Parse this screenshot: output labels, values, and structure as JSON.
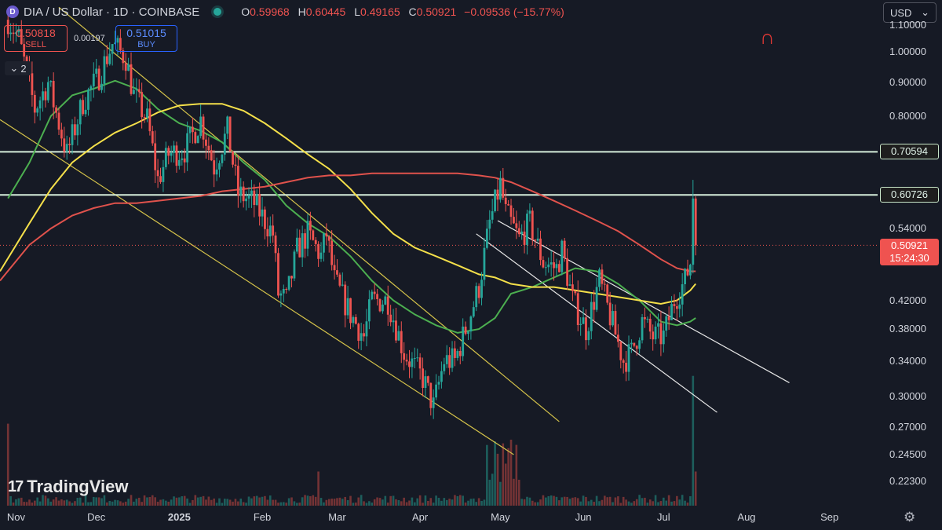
{
  "header": {
    "icon_letter": "D",
    "symbol": "DIA / US Dollar · 1D · COINBASE",
    "open_label": "O",
    "open": "0.59968",
    "high_label": "H",
    "high": "0.60445",
    "low_label": "L",
    "low": "0.49165",
    "close_label": "C",
    "close": "0.50921",
    "change": "−0.09536 (−15.77%)"
  },
  "trade": {
    "sell_price": "0.50818",
    "sell_label": "SELL",
    "spread": "0.00197",
    "buy_price": "0.51015",
    "buy_label": "BUY"
  },
  "indicator_toggle": {
    "count": "2"
  },
  "currency_select": {
    "value": "USD"
  },
  "branding": {
    "logo_text": "TradingView"
  },
  "colors": {
    "background": "#161a25",
    "up": "#26a69a",
    "down": "#ef5350",
    "ma_short": "#4caf50",
    "ma_mid": "#f5e04a",
    "ma_long": "#e0524c",
    "channel_yellow": "#d4c24a",
    "channel_white": "#e6e6e6",
    "level": "#d6eedb"
  },
  "chart_data": {
    "type": "candlestick",
    "title": "DIA / US Dollar · 1D · COINBASE",
    "y_scale": "log",
    "ylim": [
      0.205,
      1.2
    ],
    "xlim_day_index": [
      -3,
      325
    ],
    "x_start_date": "2024-10-29",
    "y_ticks": [
      "1.10000",
      "1.00000",
      "0.90000",
      "0.80000",
      "0.54000",
      "0.42000",
      "0.38000",
      "0.34000",
      "0.30000",
      "0.27000",
      "0.24500",
      "0.22300"
    ],
    "y_tick_values": [
      1.1,
      1.0,
      0.9,
      0.8,
      0.54,
      0.42,
      0.38,
      0.34,
      0.3,
      0.27,
      0.245,
      0.223
    ],
    "x_ticks": [
      {
        "label": "Nov",
        "day": 3
      },
      {
        "label": "Dec",
        "day": 33
      },
      {
        "label": "2025",
        "day": 64,
        "bold": true
      },
      {
        "label": "Feb",
        "day": 95
      },
      {
        "label": "Mar",
        "day": 123
      },
      {
        "label": "Apr",
        "day": 154
      },
      {
        "label": "May",
        "day": 184
      },
      {
        "label": "Jun",
        "day": 215
      },
      {
        "label": "Jul",
        "day": 245
      },
      {
        "label": "Aug",
        "day": 276
      },
      {
        "label": "Sep",
        "day": 307
      }
    ],
    "horizontal_levels": [
      {
        "value": 0.70594,
        "label": "0.70594"
      },
      {
        "value": 0.60726,
        "label": "0.60726"
      }
    ],
    "last_price": {
      "value": 0.50921,
      "label": "0.50921",
      "countdown": "15:24:30"
    },
    "price_path_anchors": [
      [
        0,
        1.12
      ],
      [
        4,
        1.05
      ],
      [
        10,
        0.82
      ],
      [
        15,
        0.9
      ],
      [
        22,
        0.7
      ],
      [
        28,
        0.84
      ],
      [
        34,
        0.92
      ],
      [
        39,
        1.03
      ],
      [
        44,
        0.98
      ],
      [
        47,
        0.86
      ],
      [
        52,
        0.79
      ],
      [
        56,
        0.64
      ],
      [
        60,
        0.7
      ],
      [
        66,
        0.71
      ],
      [
        72,
        0.79
      ],
      [
        77,
        0.67
      ],
      [
        82,
        0.76
      ],
      [
        86,
        0.61
      ],
      [
        92,
        0.59
      ],
      [
        99,
        0.53
      ],
      [
        101,
        0.43
      ],
      [
        104,
        0.42
      ],
      [
        108,
        0.5
      ],
      [
        112,
        0.53
      ],
      [
        117,
        0.49
      ],
      [
        119,
        0.53
      ],
      [
        122,
        0.45
      ],
      [
        128,
        0.4
      ],
      [
        133,
        0.37
      ],
      [
        136,
        0.42
      ],
      [
        142,
        0.42
      ],
      [
        148,
        0.35
      ],
      [
        155,
        0.32
      ],
      [
        159,
        0.29
      ],
      [
        163,
        0.34
      ],
      [
        167,
        0.34
      ],
      [
        172,
        0.39
      ],
      [
        176,
        0.44
      ],
      [
        180,
        0.55
      ],
      [
        184,
        0.63
      ],
      [
        186,
        0.57
      ],
      [
        191,
        0.52
      ],
      [
        195,
        0.55
      ],
      [
        200,
        0.48
      ],
      [
        205,
        0.47
      ],
      [
        207,
        0.5
      ],
      [
        211,
        0.42
      ],
      [
        216,
        0.38
      ],
      [
        221,
        0.45
      ],
      [
        224,
        0.41
      ],
      [
        230,
        0.34
      ],
      [
        233,
        0.35
      ],
      [
        237,
        0.39
      ],
      [
        241,
        0.37
      ],
      [
        245,
        0.37
      ],
      [
        249,
        0.42
      ],
      [
        253,
        0.45
      ],
      [
        255,
        0.48
      ],
      [
        256,
        0.6
      ],
      [
        257,
        0.51
      ]
    ],
    "moving_averages": [
      {
        "name": "MA short",
        "color": "#4caf50",
        "points": [
          [
            0,
            0.6
          ],
          [
            8,
            0.68
          ],
          [
            16,
            0.8
          ],
          [
            24,
            0.86
          ],
          [
            32,
            0.88
          ],
          [
            40,
            0.905
          ],
          [
            48,
            0.88
          ],
          [
            56,
            0.82
          ],
          [
            64,
            0.78
          ],
          [
            72,
            0.76
          ],
          [
            80,
            0.73
          ],
          [
            88,
            0.68
          ],
          [
            96,
            0.64
          ],
          [
            104,
            0.585
          ],
          [
            112,
            0.55
          ],
          [
            120,
            0.525
          ],
          [
            128,
            0.49
          ],
          [
            136,
            0.45
          ],
          [
            144,
            0.42
          ],
          [
            152,
            0.4
          ],
          [
            160,
            0.385
          ],
          [
            168,
            0.375
          ],
          [
            176,
            0.38
          ],
          [
            182,
            0.395
          ],
          [
            188,
            0.43
          ],
          [
            196,
            0.44
          ],
          [
            204,
            0.455
          ],
          [
            212,
            0.47
          ],
          [
            220,
            0.465
          ],
          [
            228,
            0.445
          ],
          [
            236,
            0.42
          ],
          [
            244,
            0.39
          ],
          [
            250,
            0.385
          ],
          [
            255,
            0.39
          ],
          [
            257,
            0.395
          ]
        ]
      },
      {
        "name": "MA mid",
        "color": "#f5e04a",
        "points": [
          [
            -3,
            0.465
          ],
          [
            8,
            0.55
          ],
          [
            16,
            0.62
          ],
          [
            24,
            0.68
          ],
          [
            32,
            0.72
          ],
          [
            40,
            0.755
          ],
          [
            48,
            0.78
          ],
          [
            56,
            0.81
          ],
          [
            64,
            0.83
          ],
          [
            72,
            0.835
          ],
          [
            80,
            0.835
          ],
          [
            88,
            0.815
          ],
          [
            96,
            0.78
          ],
          [
            104,
            0.74
          ],
          [
            112,
            0.7
          ],
          [
            120,
            0.665
          ],
          [
            128,
            0.62
          ],
          [
            136,
            0.57
          ],
          [
            144,
            0.53
          ],
          [
            152,
            0.505
          ],
          [
            160,
            0.49
          ],
          [
            168,
            0.475
          ],
          [
            176,
            0.46
          ],
          [
            182,
            0.455
          ],
          [
            188,
            0.445
          ],
          [
            196,
            0.44
          ],
          [
            204,
            0.44
          ],
          [
            212,
            0.435
          ],
          [
            220,
            0.43
          ],
          [
            228,
            0.425
          ],
          [
            236,
            0.42
          ],
          [
            244,
            0.415
          ],
          [
            250,
            0.42
          ],
          [
            255,
            0.435
          ],
          [
            257,
            0.445
          ]
        ]
      },
      {
        "name": "MA long",
        "color": "#e0524c",
        "points": [
          [
            -3,
            0.45
          ],
          [
            8,
            0.51
          ],
          [
            16,
            0.54
          ],
          [
            24,
            0.565
          ],
          [
            32,
            0.58
          ],
          [
            40,
            0.59
          ],
          [
            48,
            0.59
          ],
          [
            56,
            0.595
          ],
          [
            64,
            0.6
          ],
          [
            72,
            0.605
          ],
          [
            80,
            0.615
          ],
          [
            88,
            0.62
          ],
          [
            96,
            0.625
          ],
          [
            104,
            0.635
          ],
          [
            112,
            0.645
          ],
          [
            120,
            0.65
          ],
          [
            128,
            0.65
          ],
          [
            136,
            0.655
          ],
          [
            144,
            0.655
          ],
          [
            152,
            0.655
          ],
          [
            160,
            0.655
          ],
          [
            168,
            0.655
          ],
          [
            176,
            0.65
          ],
          [
            182,
            0.645
          ],
          [
            188,
            0.635
          ],
          [
            196,
            0.615
          ],
          [
            204,
            0.595
          ],
          [
            212,
            0.575
          ],
          [
            220,
            0.555
          ],
          [
            228,
            0.535
          ],
          [
            236,
            0.51
          ],
          [
            244,
            0.485
          ],
          [
            250,
            0.47
          ],
          [
            255,
            0.465
          ],
          [
            257,
            0.465
          ]
        ]
      }
    ],
    "channels": [
      {
        "name": "yellow upper",
        "color": "#d4c24a",
        "from": [
          19,
          1.17
        ],
        "to": [
          206,
          0.275
        ]
      },
      {
        "name": "yellow lower",
        "color": "#d4c24a",
        "from": [
          -3,
          0.79
        ],
        "to": [
          189,
          0.245
        ]
      },
      {
        "name": "white upper",
        "color": "#e6e6e6",
        "from": [
          183,
          0.555
        ],
        "to": [
          292,
          0.315
        ]
      },
      {
        "name": "white lower",
        "color": "#e6e6e6",
        "from": [
          175,
          0.53
        ],
        "to": [
          265,
          0.284
        ]
      }
    ]
  }
}
